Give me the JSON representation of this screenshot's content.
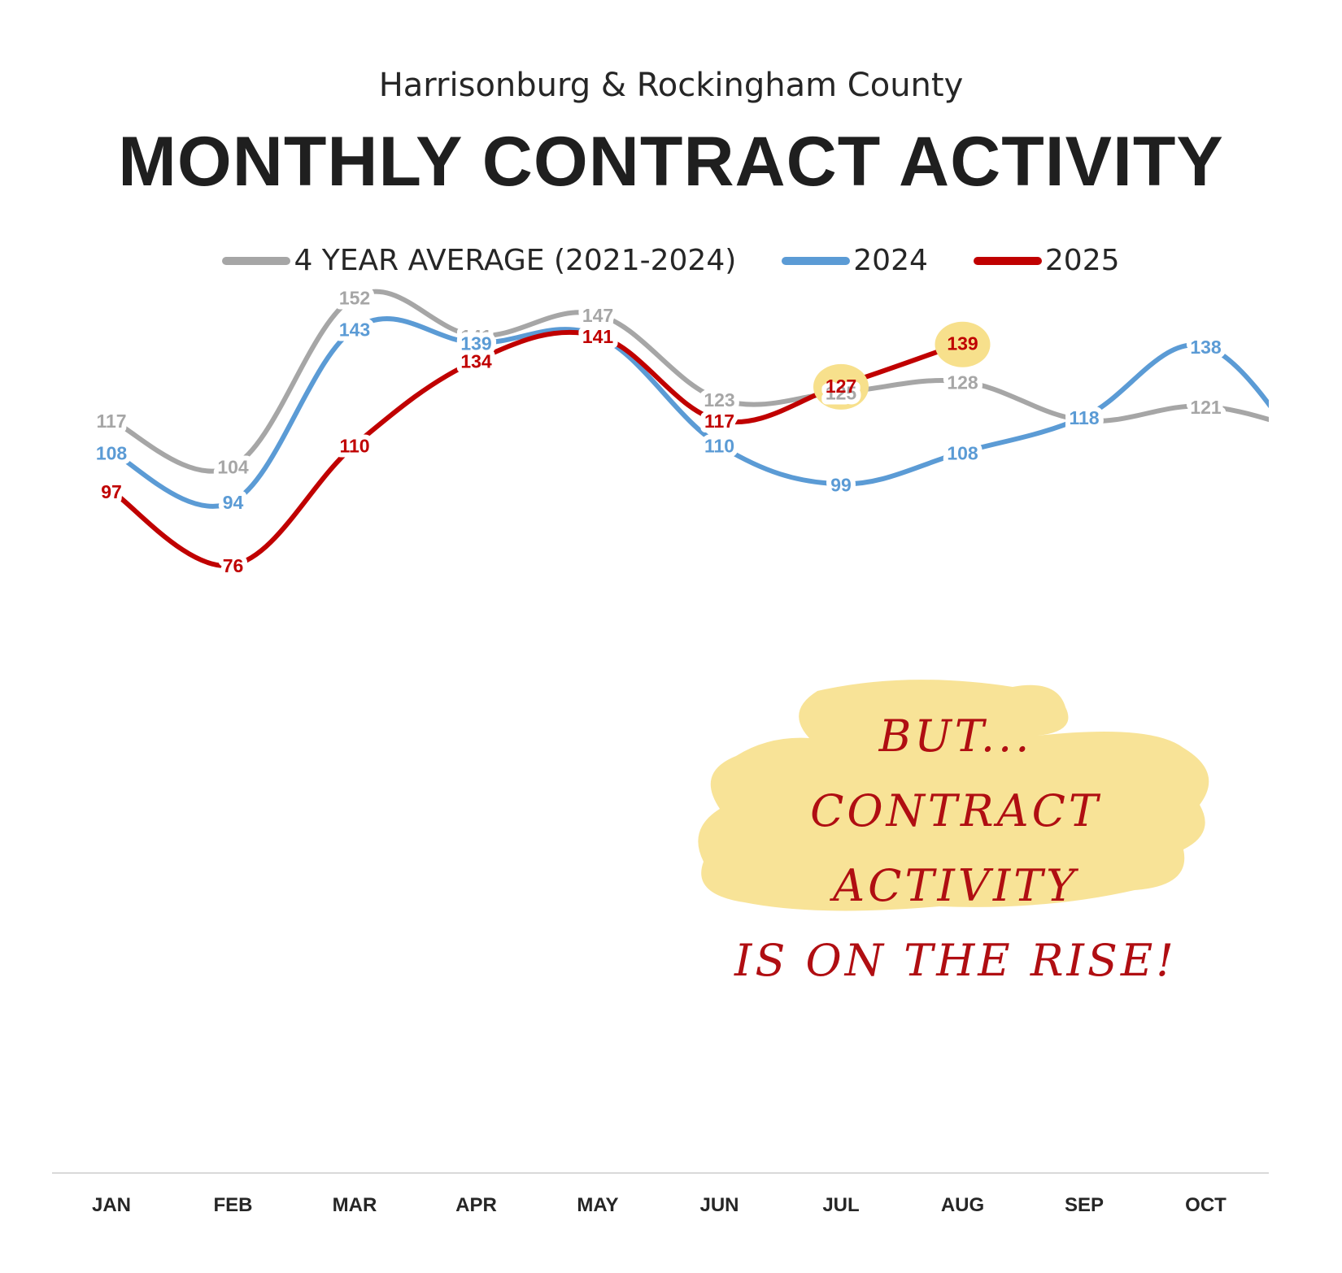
{
  "header": {
    "subtitle": "Harrisonburg & Rockingham County",
    "title": "MONTHLY CONTRACT ACTIVITY"
  },
  "colors": {
    "avg": "#a6a6a6",
    "y2024": "#5b9bd5",
    "y2025": "#c00000",
    "highlight": "#f7e08c",
    "axis": "#d9d9d9"
  },
  "annotation": {
    "line1": "BUT...",
    "line2": "CONTRACT ACTIVITY",
    "line3": "IS ON THE RISE!"
  },
  "chart_data": {
    "type": "line",
    "categories": [
      "JAN",
      "FEB",
      "MAR",
      "APR",
      "MAY",
      "JUN",
      "JUL",
      "AUG",
      "SEP",
      "OCT"
    ],
    "series": [
      {
        "name": "4 YEAR AVERAGE (2021-2024)",
        "values": [
          117,
          104,
          152,
          141,
          147,
          123,
          125,
          128,
          117,
          121
        ]
      },
      {
        "name": "2024",
        "values": [
          108,
          94,
          143,
          139,
          141,
          110,
          99,
          108,
          118,
          138
        ]
      },
      {
        "name": "2025",
        "values": [
          97,
          76,
          110,
          134,
          141,
          117,
          127,
          139,
          null,
          null
        ]
      }
    ],
    "highlighted_points": {
      "series": "2025",
      "categories": [
        "JUL",
        "AUG"
      ]
    },
    "grid": false,
    "legend_position": "top-center"
  }
}
